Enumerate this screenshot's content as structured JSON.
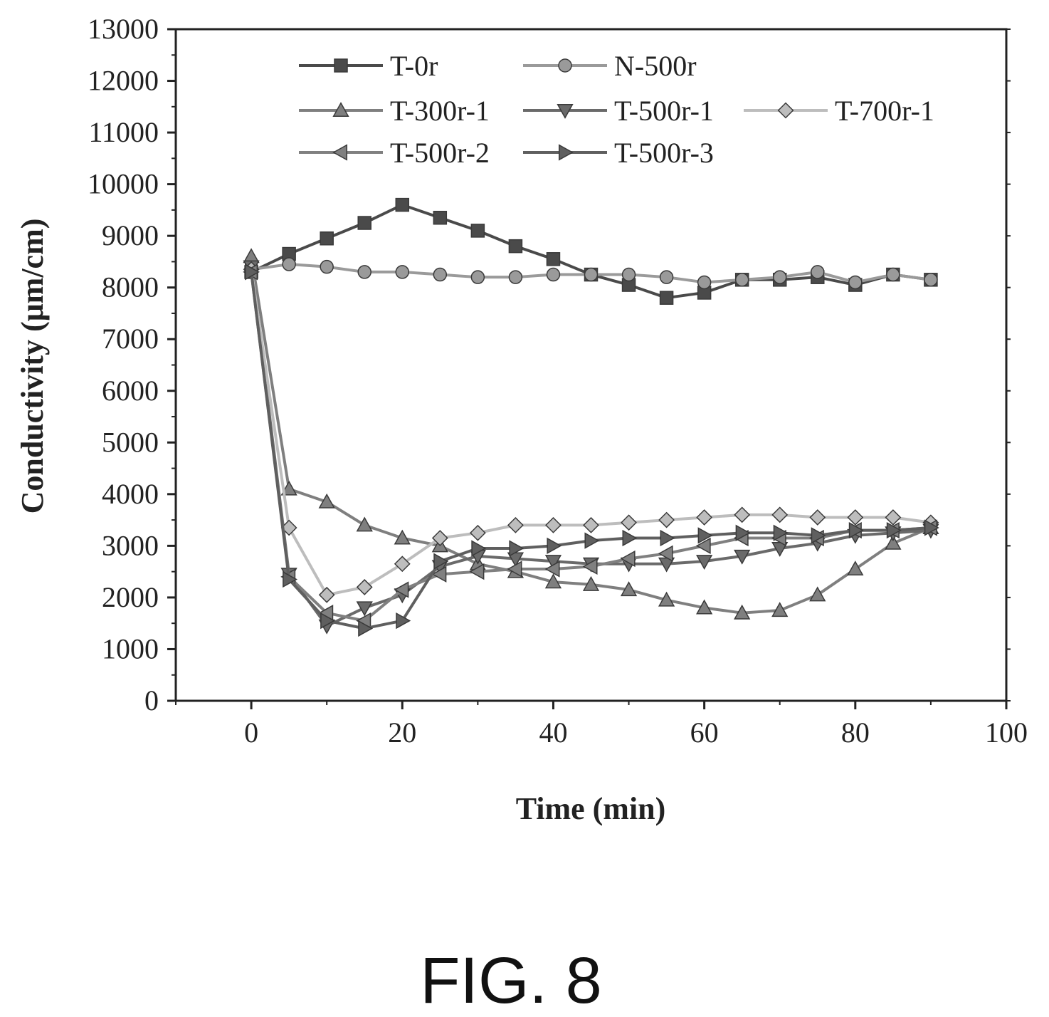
{
  "caption": "FIG. 8",
  "chart_data": {
    "type": "line",
    "title": "",
    "xlabel": "Time (min)",
    "ylabel": "Conductivity  (μm/cm)",
    "xlim": [
      -10,
      100
    ],
    "ylim": [
      0,
      13000
    ],
    "xticks": [
      0,
      20,
      40,
      60,
      80,
      100
    ],
    "yticks": [
      0,
      1000,
      2000,
      3000,
      4000,
      5000,
      6000,
      7000,
      8000,
      9000,
      10000,
      11000,
      12000,
      13000
    ],
    "grid": false,
    "legend_position": "top",
    "x": [
      0,
      5,
      10,
      15,
      20,
      25,
      30,
      35,
      40,
      45,
      50,
      55,
      60,
      65,
      70,
      75,
      80,
      85,
      90
    ],
    "series": [
      {
        "name": "T-0r",
        "marker": "square",
        "color": "#4a4a4a",
        "values": [
          8300,
          8650,
          8950,
          9250,
          9600,
          9350,
          9100,
          8800,
          8550,
          8250,
          8050,
          7800,
          7900,
          8150,
          8150,
          8200,
          8050,
          8250,
          8150
        ]
      },
      {
        "name": "N-500r",
        "marker": "circle",
        "color": "#9a9a9a",
        "values": [
          8350,
          8450,
          8400,
          8300,
          8300,
          8250,
          8200,
          8200,
          8250,
          8250,
          8250,
          8200,
          8100,
          8150,
          8200,
          8300,
          8100,
          8250,
          8150
        ]
      },
      {
        "name": "T-300r-1",
        "marker": "triangle-up",
        "color": "#7f7f7f",
        "values": [
          8600,
          4100,
          3850,
          3400,
          3150,
          3000,
          2650,
          2500,
          2300,
          2250,
          2150,
          1950,
          1800,
          1700,
          1750,
          2050,
          2550,
          3050,
          3350
        ]
      },
      {
        "name": "T-500r-1",
        "marker": "triangle-down",
        "color": "#6a6a6a",
        "values": [
          8400,
          2450,
          1450,
          1800,
          2050,
          2600,
          2800,
          2750,
          2700,
          2650,
          2650,
          2650,
          2700,
          2800,
          2950,
          3050,
          3200,
          3250,
          3300
        ]
      },
      {
        "name": "T-700r-1",
        "marker": "diamond",
        "color": "#bdbdbd",
        "values": [
          8350,
          3350,
          2050,
          2200,
          2650,
          3150,
          3250,
          3400,
          3400,
          3400,
          3450,
          3500,
          3550,
          3600,
          3600,
          3550,
          3550,
          3550,
          3450
        ]
      },
      {
        "name": "T-500r-2",
        "marker": "triangle-left",
        "color": "#808080",
        "values": [
          8300,
          2400,
          1700,
          1550,
          2150,
          2450,
          2500,
          2550,
          2550,
          2600,
          2750,
          2850,
          3000,
          3150,
          3150,
          3150,
          3300,
          3300,
          3350
        ]
      },
      {
        "name": "T-500r-3",
        "marker": "triangle-right",
        "color": "#5f5f5f",
        "values": [
          8300,
          2350,
          1550,
          1400,
          1550,
          2700,
          2950,
          2950,
          3000,
          3100,
          3150,
          3150,
          3200,
          3250,
          3250,
          3200,
          3300,
          3300,
          3350
        ]
      }
    ]
  }
}
